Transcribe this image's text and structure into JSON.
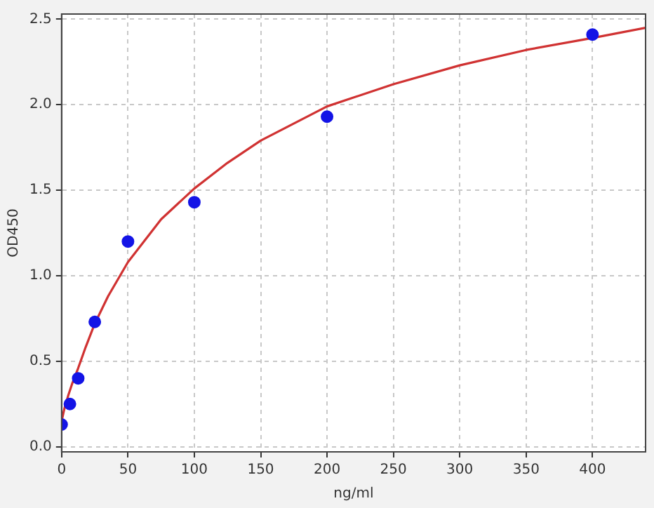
{
  "chart_data": {
    "type": "scatter",
    "xlabel": "ng/ml",
    "ylabel": "OD450",
    "xlim": [
      0,
      440
    ],
    "xticks": [
      0,
      50,
      100,
      150,
      200,
      250,
      300,
      350,
      400
    ],
    "ylim": [
      -0.03,
      2.53
    ],
    "yticks": [
      {
        "value": 0,
        "label": "0.0"
      },
      0.5,
      {
        "value": 1,
        "label": "1.0"
      },
      1.5,
      {
        "value": 2,
        "label": "2.0"
      },
      2.5
    ],
    "grid": true,
    "legend": false,
    "marker": "circle",
    "series": [
      {
        "color": "#1414e6",
        "x": [
          0,
          6.25,
          12.5,
          25,
          50,
          100,
          200,
          400
        ],
        "values": [
          0.13,
          0.25,
          0.4,
          0.73,
          1.2,
          1.43,
          1.93,
          2.41
        ]
      },
      {
        "type": "line",
        "color": "#d03232",
        "marker": "none",
        "line_style": "solid",
        "x": [
          0,
          2,
          5,
          8,
          12.5,
          18,
          25,
          35,
          50,
          75,
          100,
          125,
          150,
          200,
          250,
          300,
          350,
          400,
          440
        ],
        "values": [
          0.15,
          0.22,
          0.3,
          0.37,
          0.46,
          0.58,
          0.72,
          0.88,
          1.08,
          1.33,
          1.51,
          1.66,
          1.79,
          1.99,
          2.12,
          2.23,
          2.32,
          2.39,
          2.45
        ]
      }
    ]
  }
}
